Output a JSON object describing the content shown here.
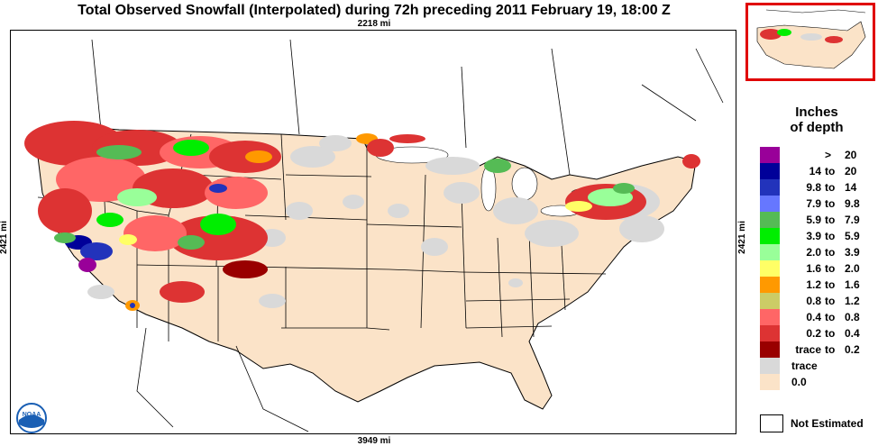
{
  "title": "Total Observed Snowfall (Interpolated) during 72h preceding 2011 February 19, 18:00 Z",
  "scale": {
    "top": "2218 mi",
    "bottom": "3949 mi",
    "left": "2421 mi",
    "right": "2421 mi"
  },
  "legend": {
    "title_line1": "Inches",
    "title_line2": "of depth",
    "entries": [
      {
        "lo": "",
        "to": ">",
        "hi": "20",
        "color": "#990099"
      },
      {
        "lo": "14",
        "to": "to",
        "hi": "20",
        "color": "#000099"
      },
      {
        "lo": "9.8",
        "to": "to",
        "hi": "14",
        "color": "#2233bb"
      },
      {
        "lo": "7.9",
        "to": "to",
        "hi": "9.8",
        "color": "#6677ff"
      },
      {
        "lo": "5.9",
        "to": "to",
        "hi": "7.9",
        "color": "#55bb55"
      },
      {
        "lo": "3.9",
        "to": "to",
        "hi": "5.9",
        "color": "#00ee00"
      },
      {
        "lo": "2.0",
        "to": "to",
        "hi": "3.9",
        "color": "#99ff99"
      },
      {
        "lo": "1.6",
        "to": "to",
        "hi": "2.0",
        "color": "#ffff66"
      },
      {
        "lo": "1.2",
        "to": "to",
        "hi": "1.6",
        "color": "#ff9900"
      },
      {
        "lo": "0.8",
        "to": "to",
        "hi": "1.2",
        "color": "#cccc66"
      },
      {
        "lo": "0.4",
        "to": "to",
        "hi": "0.8",
        "color": "#ff6666"
      },
      {
        "lo": "0.2",
        "to": "to",
        "hi": "0.4",
        "color": "#dd3333"
      },
      {
        "lo": "trace",
        "to": "to",
        "hi": "0.2",
        "color": "#990000"
      },
      {
        "single": "trace",
        "color": "#d9d9d9"
      },
      {
        "single": "0.0",
        "color": "#fbe3c8"
      }
    ],
    "not_estimated": "Not Estimated"
  },
  "colors": {
    "no_snow": "#fbe3c8",
    "trace": "#d9d9d9",
    "inset_border": "#e00000",
    "noaa_blue": "#1a5fb4"
  },
  "icons": {
    "logo": "noaa-logo"
  }
}
